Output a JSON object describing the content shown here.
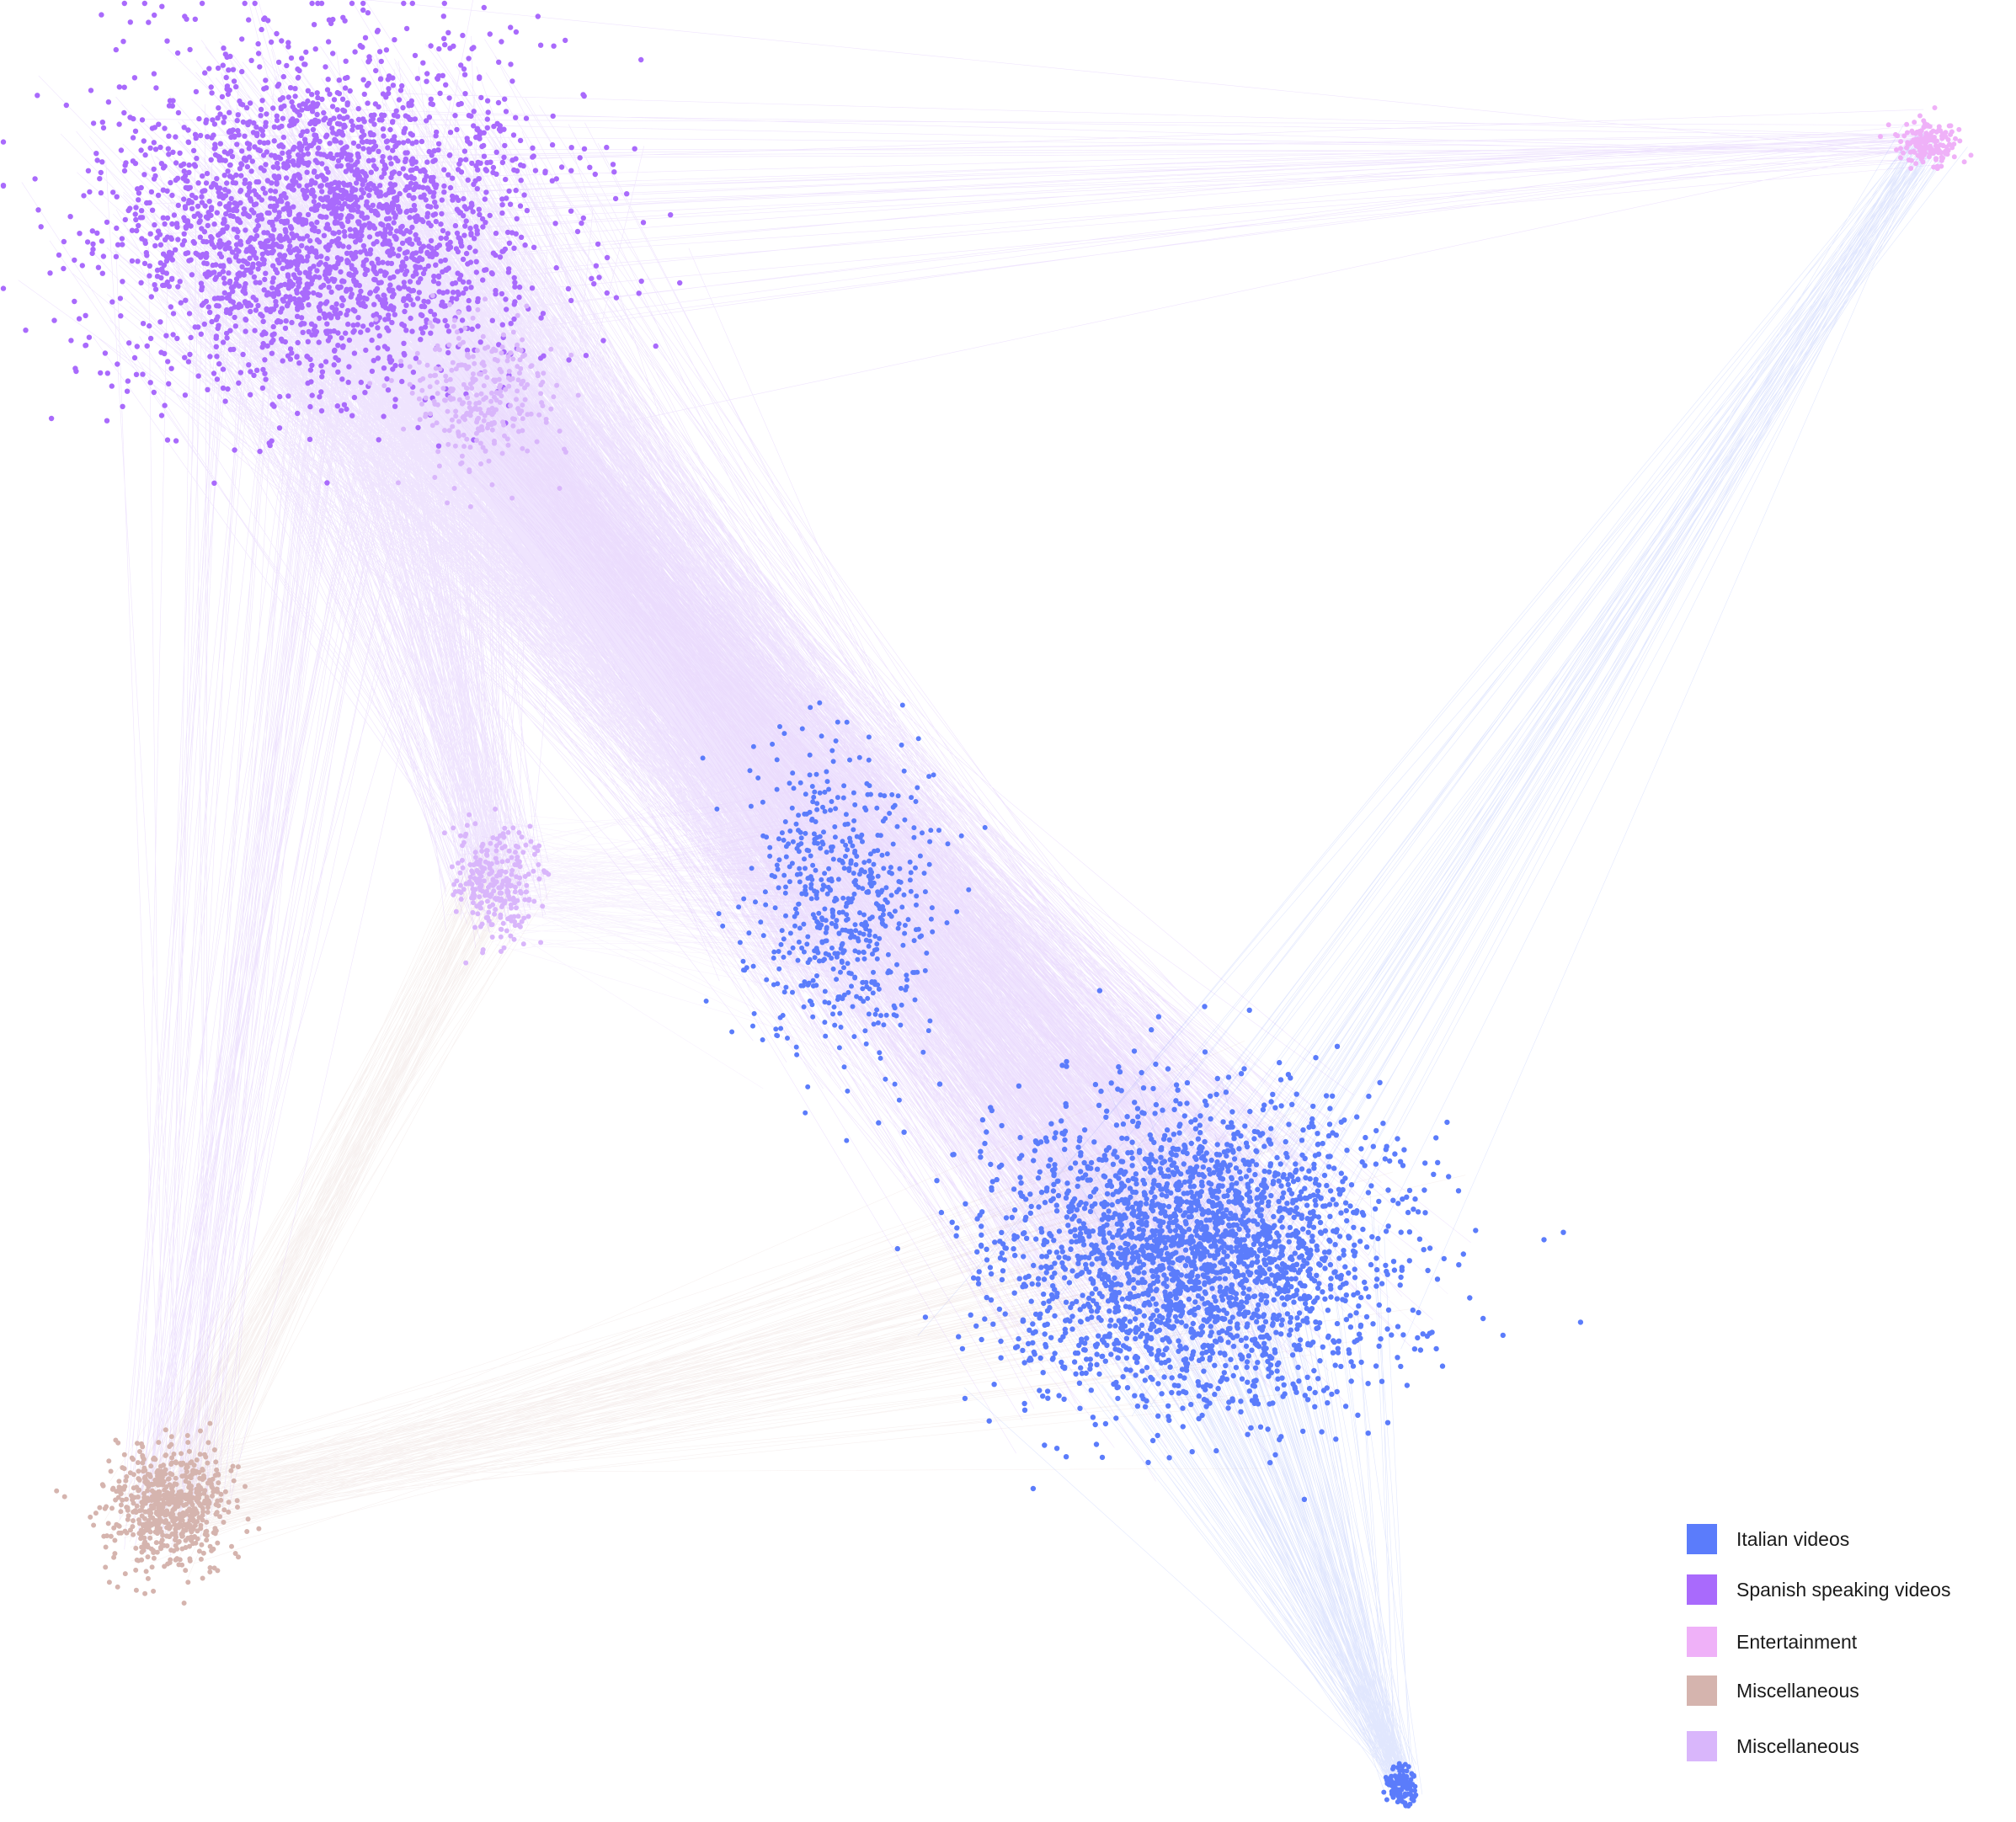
{
  "legend": {
    "items": [
      {
        "label": "Italian videos",
        "color": "#5b7cfb"
      },
      {
        "label": "Spanish speaking videos",
        "color": "#a96afc"
      },
      {
        "label": "Entertainment",
        "color": "#efb1f8"
      },
      {
        "label": "Miscellaneous",
        "color": "#d5b4ae"
      },
      {
        "label": "Miscellaneous",
        "color": "#d9b6fb"
      }
    ]
  },
  "clusters": [
    {
      "community": "Spanish speaking videos",
      "color": "#a96afc"
    },
    {
      "community": "Italian videos",
      "color": "#5b7cfb"
    },
    {
      "community": "Entertainment",
      "color": "#efb1f8"
    },
    {
      "community": "Miscellaneous",
      "color": "#d5b4ae"
    },
    {
      "community": "Miscellaneous",
      "color": "#d9b6fb"
    }
  ]
}
